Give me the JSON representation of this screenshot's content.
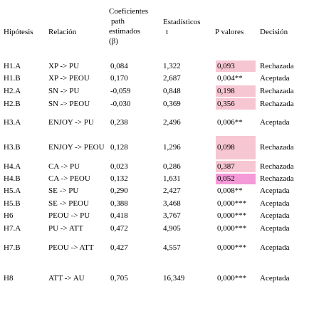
{
  "headers": {
    "hipotesis": "Hipótesis",
    "relacion": "Relación",
    "coef_line1": "Coeficientes",
    "coef_line2": "path",
    "coef_line3": "estimados",
    "coef_line4": "(β)",
    "est_line1": "Estadísticos",
    "est_line2": "t",
    "p": "P valores",
    "decision": "Decisión"
  },
  "rows": [
    {
      "hip": "H1.A",
      "rel": "XP -> PU",
      "coef": "0,084",
      "t": "1,322",
      "p": "0,093",
      "dec": "Rechazada",
      "hl": "light"
    },
    {
      "hip": "H1.B",
      "rel": "XP -> PEOU",
      "coef": "0,170",
      "t": "2,687",
      "p": "0,004**",
      "dec": "Aceptada",
      "hl": ""
    },
    {
      "hip": "H2.A",
      "rel": "SN -> PU",
      "coef": "-0,059",
      "t": "0,848",
      "p": "0,198",
      "dec": "Rechazada",
      "hl": "light"
    },
    {
      "hip": "H2.B",
      "rel": "SN -> PEOU",
      "coef": "-0,030",
      "t": "0,369",
      "p": "0,356",
      "dec": "Rechazada",
      "hl": "light"
    },
    {
      "hip": "H3.A",
      "rel": "ENJOY -> PU",
      "coef": "0,238",
      "t": "2,496",
      "p": "0,006**",
      "dec": "Aceptada",
      "hl": ""
    },
    {
      "hip": "H3.B",
      "rel": "ENJOY -> PEOU",
      "coef": "0,128",
      "t": "1,296",
      "p": "0,098",
      "dec": "Rechazada",
      "hl": "light"
    },
    {
      "hip": "H4.A",
      "rel": "CA -> PU",
      "coef": "0,023",
      "t": "0,286",
      "p": "0,387",
      "dec": "Rechazada",
      "hl": "light"
    },
    {
      "hip": "H4.B",
      "rel": "CA -> PEOU",
      "coef": "0,132",
      "t": "1,631",
      "p": "0,052",
      "dec": "Rechazada",
      "hl": "strong"
    },
    {
      "hip": "H5.A",
      "rel": "SE -> PU",
      "coef": "0,290",
      "t": "2,427",
      "p": "0,008**",
      "dec": "Aceptada",
      "hl": ""
    },
    {
      "hip": "H5.B",
      "rel": "SE -> PEOU",
      "coef": "0,388",
      "t": "3,468",
      "p": "0,000***",
      "dec": "Aceptada",
      "hl": ""
    },
    {
      "hip": "H6",
      "rel": "PEOU -> PU",
      "coef": "0,418",
      "t": "3,767",
      "p": "0,000***",
      "dec": "Aceptada",
      "hl": ""
    },
    {
      "hip": "H7.A",
      "rel": "PU -> ATT",
      "coef": "0,472",
      "t": "4,905",
      "p": "0,000***",
      "dec": "Aceptada",
      "hl": ""
    },
    {
      "hip": "H7.B",
      "rel": "PEOU -> ATT",
      "coef": "0,427",
      "t": "4,557",
      "p": "0,000***",
      "dec": "Aceptada",
      "hl": ""
    },
    {
      "hip": "H8",
      "rel": "ATT -> AU",
      "coef": "0,705",
      "t": "16,349",
      "p": "0,000***",
      "dec": "Aceptada",
      "hl": ""
    }
  ],
  "colors": {
    "highlight_light": "#f7c6d3",
    "highlight_strong": "#f49ad8"
  }
}
